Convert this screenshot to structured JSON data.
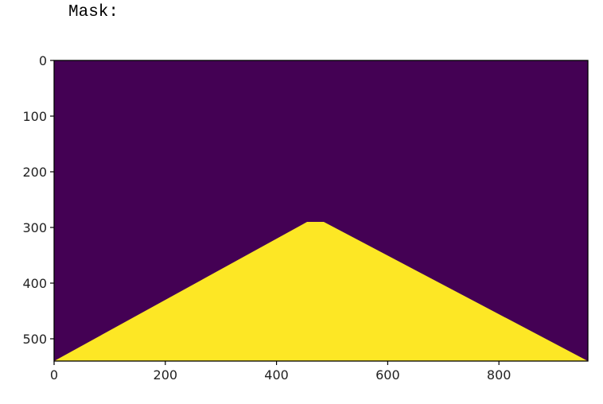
{
  "caption": "Mask:",
  "chart_data": {
    "type": "heatmap",
    "title": "",
    "xlabel": "",
    "ylabel": "",
    "image_width": 960,
    "image_height": 540,
    "xlim": [
      0,
      960
    ],
    "ylim": [
      540,
      0
    ],
    "x_ticks": [
      0,
      200,
      400,
      600,
      800
    ],
    "y_ticks": [
      0,
      100,
      200,
      300,
      400,
      500
    ],
    "grid": false,
    "legend": "none",
    "background_value": 0,
    "mask_value": 1,
    "colors": {
      "background": "#440154",
      "mask": "#FDE725"
    },
    "mask_polygon": [
      [
        0,
        540
      ],
      [
        455,
        290
      ],
      [
        485,
        290
      ],
      [
        960,
        540
      ]
    ]
  }
}
